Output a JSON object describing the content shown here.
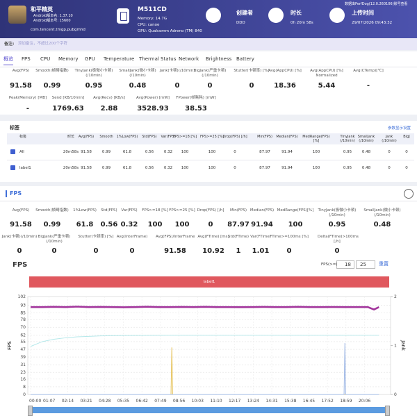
{
  "header": {
    "app": {
      "name": "和平精英",
      "version_name": "Android版本名: 1.37.10",
      "version_code": "Android版本号: 15600",
      "package": "com.tencent.tmgp.pubgmhd"
    },
    "device": {
      "model": "M511CD",
      "memory": "Memory: 14.7G",
      "cpu": "CPU: canoe",
      "gpu": "GPU: Qualcomm Adreno (TM) 840"
    },
    "creator": {
      "label": "创建者",
      "value": "DDD"
    },
    "duration": {
      "label": "时长",
      "value": "0h 20m 58s"
    },
    "upload": {
      "label": "上传时间",
      "value": "29/07/2026 09:43:32"
    },
    "viewer": "数据由PerfDog(12.0.260106)账号查看"
  },
  "note": {
    "label": "备注:",
    "placeholder": "添加备注，不超过200个字符"
  },
  "tabs": [
    "概览",
    "FPS",
    "CPU",
    "Memory",
    "GPU",
    "Temperature",
    "Thermal Status",
    "Network",
    "Brightness",
    "Battery"
  ],
  "overview": {
    "rows": [
      [
        {
          "label": "Avg(FPS)",
          "value": 91.58
        },
        {
          "label": "Smooth(帧畸指数)",
          "value": 0.99
        },
        {
          "label": "TinyJank(极微小卡顿)(/10min)",
          "value": 0.95
        },
        {
          "label": "SmallJank(微小卡顿)(/10min)",
          "value": 0.48
        },
        {
          "label": "Jank(卡顿)(/10min)",
          "value": 0
        },
        {
          "label": "BigJank(严重卡顿)(/10min)",
          "value": 0
        },
        {
          "label": "Stutter(卡顿率) [%]",
          "value": 0
        },
        {
          "label": "Avg(AppCPU) [%]",
          "value": 18.36
        },
        {
          "label": "Avg(AppCPU) [%] Normalized",
          "value": 5.44
        },
        {
          "label": "Avg(CTemp)[℃]",
          "value": "-"
        }
      ],
      [
        {
          "label": "Peak(Memory) [MB]",
          "value": "-"
        },
        {
          "label": "Send [KB/10min]",
          "value": 1769.63
        },
        {
          "label": "Avg(Recv) [KB/s]",
          "value": 2.88
        },
        {
          "label": "Avg(Power) [mW]",
          "value": 3528.93
        },
        {
          "label": "FPower(帧耗耗) [mW]",
          "value": 38.53
        }
      ]
    ]
  },
  "labels_table": {
    "title": "标签",
    "settings": "参数显示设置",
    "columns": [
      "标签",
      "时长",
      "Avg(FPS)",
      "Smooth",
      "1%Low(FPS)",
      "Std(FPS)",
      "Var(FPS)",
      "FPS>=18 [%]",
      "FPS>=25 [%]",
      "Drop(FPS) [/h]",
      "Min(FPS)",
      "Median(FPS)",
      "MedRange(FPS)[%]",
      "TinyJank (/10min)",
      "SmallJank (/10min)",
      "Jank (/10min)",
      "BigJ"
    ],
    "rows": [
      [
        "All",
        "20m58s",
        91.58,
        0.99,
        61.8,
        0.56,
        0.32,
        100,
        100,
        0,
        87.97,
        91.94,
        100,
        0.95,
        0.48,
        0,
        0
      ],
      [
        "label1",
        "20m58s",
        91.58,
        0.99,
        61.8,
        0.56,
        0.32,
        100,
        100,
        0,
        87.97,
        91.94,
        100,
        0.95,
        0.48,
        0,
        0
      ]
    ]
  },
  "fps_section": {
    "title": "FPS",
    "rows": [
      [
        {
          "label": "Avg(FPS)",
          "value": 91.58
        },
        {
          "label": "Smooth(帧畸指数)",
          "value": 0.99
        },
        {
          "label": "1%Low(FPS)",
          "value": 61.8
        },
        {
          "label": "Std(FPS)",
          "value": 0.56
        },
        {
          "label": "Var(FPS)",
          "value": 0.32
        },
        {
          "label": "FPS>=18 [%]",
          "value": 100
        },
        {
          "label": "FPS>=25 [%]",
          "value": 100
        },
        {
          "label": "Drop(FPS) [/h]",
          "value": 0
        },
        {
          "label": "Min(FPS)",
          "value": 87.97
        },
        {
          "label": "Median(FPS)",
          "value": 91.94
        },
        {
          "label": "MedRange(FPS)[%]",
          "value": 100
        },
        {
          "label": "TinyJank(极微小卡顿)(/10min)",
          "value": 0.95
        },
        {
          "label": "SmallJank(微小卡顿)(/10min)",
          "value": 0.48
        }
      ],
      [
        {
          "label": "Jank(卡顿)(/10min)",
          "value": 0
        },
        {
          "label": "BigJank(严重卡顿)(/10min)",
          "value": 0
        },
        {
          "label": "Stutter(卡顿率) [%]",
          "value": 0
        },
        {
          "label": "Avg(InterFrame)",
          "value": 0
        },
        {
          "label": "Avg(FPS)/InterFrame",
          "value": 91.58
        },
        {
          "label": "Avg(FTime) [ms]",
          "value": 10.92
        },
        {
          "label": "Std(FTime)",
          "value": 1
        },
        {
          "label": "Var(FTime)",
          "value": 1.01
        },
        {
          "label": "FTime>=100ms [%]",
          "value": 0
        },
        {
          "label": "Delta(FTime)>100ms [/h]",
          "value": 0
        }
      ]
    ]
  },
  "chart_data": {
    "type": "line",
    "title": "FPS",
    "filter": {
      "label": "FPS(>=)",
      "values": [
        18,
        25
      ],
      "reset": "重置"
    },
    "band_label": "label1",
    "ylabel": "FPS",
    "y2label": "Jank",
    "xlim": [
      0,
      1300
    ],
    "xticks": [
      {
        "value": 0,
        "label": "00:00"
      },
      {
        "value": 67,
        "label": "01:07"
      },
      {
        "value": 134,
        "label": "02:14"
      },
      {
        "value": 201,
        "label": "03:21"
      },
      {
        "value": 268,
        "label": "04:28"
      },
      {
        "value": 335,
        "label": "05:35"
      },
      {
        "value": 402,
        "label": "06:42"
      },
      {
        "value": 469,
        "label": "07:49"
      },
      {
        "value": 536,
        "label": "08:56"
      },
      {
        "value": 603,
        "label": "10:03"
      },
      {
        "value": 670,
        "label": "11:10"
      },
      {
        "value": 737,
        "label": "12:17"
      },
      {
        "value": 804,
        "label": "13:24"
      },
      {
        "value": 871,
        "label": "14:31"
      },
      {
        "value": 938,
        "label": "15:38"
      },
      {
        "value": 1005,
        "label": "16:45"
      },
      {
        "value": 1072,
        "label": "17:52"
      },
      {
        "value": 1139,
        "label": "18:59"
      },
      {
        "value": 1206,
        "label": "20:06"
      }
    ],
    "ylim": [
      0,
      102
    ],
    "yticks": [
      0,
      8,
      16,
      23,
      31,
      39,
      47,
      55,
      62,
      70,
      78,
      85,
      93,
      102
    ],
    "y2lim": [
      0,
      2
    ],
    "y2ticks": [
      0,
      1,
      2
    ],
    "grid": true,
    "series": [
      {
        "color": "#a2359c",
        "x": [
          0,
          42,
          84,
          126,
          168,
          210,
          252,
          294,
          336,
          378,
          420,
          462,
          504,
          546,
          588,
          630,
          672,
          714,
          756,
          798,
          840,
          882,
          924,
          966,
          1008,
          1050,
          1092,
          1134,
          1176,
          1218,
          1240,
          1258
        ],
        "values": [
          91,
          91,
          91.3,
          91,
          91.5,
          91,
          91.2,
          91,
          90.8,
          91,
          91.4,
          91,
          91,
          91.2,
          91,
          91.3,
          91,
          91,
          90.9,
          91,
          91.2,
          91,
          91,
          91.3,
          91,
          91,
          91.1,
          91,
          91,
          91,
          88.5,
          91
        ]
      },
      {
        "color": "#b5e8ea",
        "x": [
          0,
          42,
          84,
          126,
          168,
          210,
          252,
          294,
          336,
          378,
          420,
          462,
          504,
          546,
          588,
          630,
          672,
          714,
          756,
          798,
          840,
          882,
          924,
          966,
          1008,
          1050,
          1092,
          1134,
          1176,
          1218,
          1240,
          1258
        ],
        "values": [
          50,
          55,
          57.5,
          59,
          60,
          60.5,
          61,
          61.2,
          61.4,
          61.5,
          61.6,
          61.7,
          61.8,
          61.8,
          61.8,
          61.8,
          61.8,
          61.8,
          61.8,
          61.8,
          61.8,
          61.8,
          61.8,
          61.8,
          61.8,
          61.8,
          61.8,
          61.8,
          61.8,
          61.8,
          61.8,
          61.8
        ]
      },
      {
        "color": "#f0a040",
        "axis": "y2",
        "x": [
          0,
          1258
        ],
        "values": [
          0,
          0
        ]
      },
      {
        "color": "#e6c35c",
        "axis": "y2",
        "x": [
          0,
          507,
          510,
          513,
          1258
        ],
        "values": [
          0,
          0,
          0.96,
          0,
          0
        ]
      },
      {
        "color": "#9fb8e6",
        "axis": "y2",
        "x": [
          0,
          1132,
          1135,
          1138,
          1258
        ],
        "values": [
          0,
          0,
          1.05,
          0,
          0
        ]
      }
    ]
  }
}
